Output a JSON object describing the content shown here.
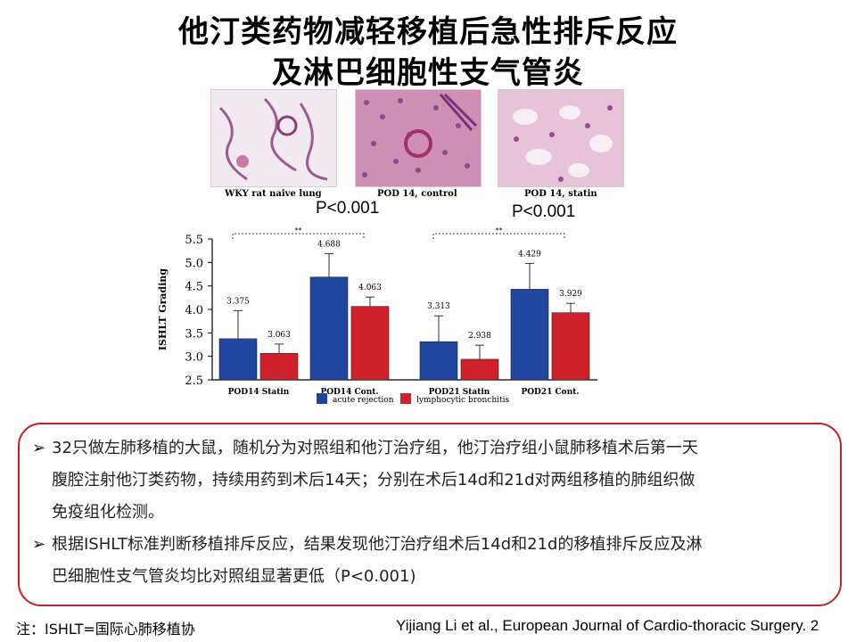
{
  "title_line1": "他汀类药物减轻移植后急性排斥反应",
  "title_line2": "及淋巴细胞性支气管炎",
  "photos": [
    {
      "caption": "WKY rat naive lung",
      "color": "#e9dfea"
    },
    {
      "caption": "POD 14, control",
      "color": "#cf8fb2"
    },
    {
      "caption": "POD 14, statin",
      "color": "#dba5c2"
    }
  ],
  "p_values": [
    "P<0.001",
    "P<0.001"
  ],
  "chart_data": {
    "type": "bar",
    "ylabel": "ISHLT Grading",
    "ylim": [
      2.5,
      5.5
    ],
    "yticks": [
      "2.5",
      "3.0",
      "3.5",
      "4.0",
      "4.5",
      "5.0",
      "5.5"
    ],
    "categories": [
      "POD14 Statin",
      "POD14 Cont.",
      "POD21 Statin",
      "POD21 Cont."
    ],
    "series": [
      {
        "name": "acute rejection",
        "color": "#2146a0",
        "values": [
          3.375,
          4.688,
          3.313,
          4.429
        ],
        "labels": [
          "3.375",
          "4.688",
          "3.313",
          "4.429"
        ],
        "errors": [
          0.6,
          0.5,
          0.55,
          0.55
        ]
      },
      {
        "name": "lymphocytic bronchitis",
        "color": "#d0202b",
        "values": [
          3.063,
          4.063,
          2.938,
          3.929
        ],
        "labels": [
          "3.063",
          "4.063",
          "2.938",
          "3.929"
        ],
        "errors": [
          0.2,
          0.2,
          0.3,
          0.2
        ]
      }
    ],
    "significance": [
      "**",
      "**"
    ],
    "legend": "bottom"
  },
  "bullets": [
    {
      "lines": [
        "32只做左肺移植的大鼠，随机分为对照组和他汀治疗组，他汀治疗组小鼠肺移植术后第一天",
        "腹腔注射他汀类药物，持续用药到术后14天；分别在术后14d和21d对两组移植的肺组织做",
        "免疫组化检测。"
      ]
    },
    {
      "lines": [
        "根据ISHLT标准判断移植排斥反应，结果发现他汀治疗组术后14d和21d的移植排斥反应及淋",
        "巴细胞性支气管炎均比对照组显著更低（P<0.001)"
      ]
    }
  ],
  "bullet_marker": "➢",
  "note": "注：ISHLT=国际心肺移植协",
  "citation": "Yijiang Li et al., European Journal of Cardio-thoracic Surgery. 2"
}
